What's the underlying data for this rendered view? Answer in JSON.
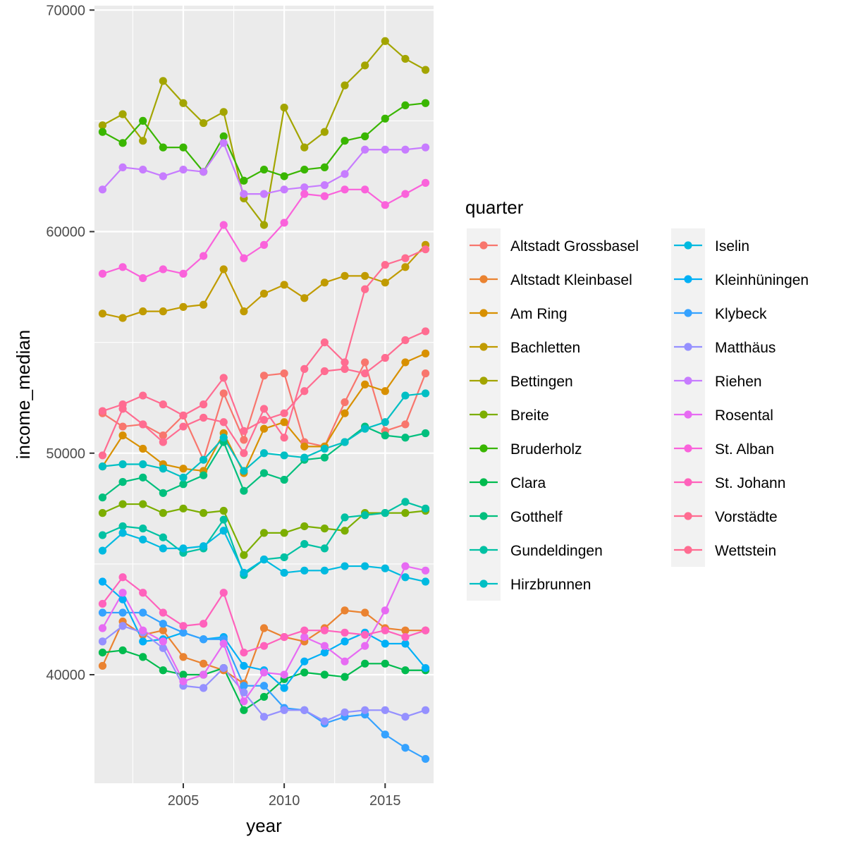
{
  "chart_data": {
    "type": "line",
    "xlabel": "year",
    "ylabel": "income_median",
    "xlim": [
      2000.6,
      2017.4
    ],
    "ylim": [
      35100,
      70200
    ],
    "x_ticks": [
      2005,
      2010,
      2015
    ],
    "x_tick_labels": [
      "2005",
      "2010",
      "2015"
    ],
    "y_ticks": [
      40000,
      50000,
      60000,
      70000
    ],
    "y_tick_labels": [
      "40000",
      "50000",
      "60000",
      "70000"
    ],
    "grid": true,
    "legend_title": "quarter",
    "legend_position": "right",
    "x": [
      2001,
      2002,
      2003,
      2004,
      2005,
      2006,
      2007,
      2008,
      2009,
      2010,
      2011,
      2012,
      2013,
      2014,
      2015,
      2016,
      2017
    ],
    "series": [
      {
        "name": "Altstadt Grossbasel",
        "color": "#F8766D",
        "values": [
          51800,
          51200,
          51300,
          50800,
          51700,
          49700,
          52700,
          50600,
          53500,
          53600,
          50500,
          50300,
          52300,
          54100,
          51000,
          51300,
          53600
        ]
      },
      {
        "name": "Altstadt Kleinbasel",
        "color": "#EA8331",
        "values": [
          40400,
          42400,
          41800,
          42000,
          40800,
          40500,
          40200,
          39600,
          42100,
          41700,
          41500,
          42100,
          42900,
          42800,
          42100,
          42000,
          42000
        ]
      },
      {
        "name": "Am Ring",
        "color": "#D89000",
        "values": [
          49400,
          50800,
          50200,
          49500,
          49300,
          49200,
          50900,
          49100,
          51100,
          51400,
          50300,
          50300,
          51800,
          53100,
          52800,
          54100,
          54500
        ]
      },
      {
        "name": "Bachletten",
        "color": "#C09B00",
        "values": [
          56300,
          56100,
          56400,
          56400,
          56600,
          56700,
          58300,
          56400,
          57200,
          57600,
          57000,
          57700,
          58000,
          58000,
          57700,
          58400,
          59400
        ]
      },
      {
        "name": "Bettingen",
        "color": "#A3A500",
        "values": [
          64800,
          65300,
          64100,
          66800,
          65800,
          64900,
          65400,
          61500,
          60300,
          65600,
          63800,
          64500,
          66600,
          67500,
          68600,
          67800,
          67300
        ]
      },
      {
        "name": "Breite",
        "color": "#7CAE00",
        "values": [
          47300,
          47700,
          47700,
          47300,
          47500,
          47300,
          47400,
          45400,
          46400,
          46400,
          46700,
          46600,
          46500,
          47300,
          47300,
          47300,
          47400
        ]
      },
      {
        "name": "Bruderholz",
        "color": "#39B600",
        "values": [
          64500,
          64000,
          65000,
          63800,
          63800,
          62700,
          64300,
          62300,
          62800,
          62500,
          62800,
          62900,
          64100,
          64300,
          65100,
          65700,
          65800
        ]
      },
      {
        "name": "Clara",
        "color": "#00BB4E",
        "values": [
          41000,
          41100,
          40800,
          40200,
          40000,
          40000,
          40300,
          38400,
          39000,
          39800,
          40100,
          40000,
          39900,
          40500,
          40500,
          40200,
          40200
        ]
      },
      {
        "name": "Gotthelf",
        "color": "#00BF7D",
        "values": [
          48000,
          48700,
          48900,
          48200,
          48600,
          49000,
          50500,
          48300,
          49100,
          48800,
          49700,
          49800,
          50500,
          51200,
          50800,
          50700,
          50900
        ]
      },
      {
        "name": "Gundeldingen",
        "color": "#00C1A3",
        "values": [
          46300,
          46700,
          46600,
          46200,
          45500,
          45700,
          47000,
          44500,
          45200,
          45300,
          45900,
          45700,
          47100,
          47200,
          47300,
          47800,
          47500
        ]
      },
      {
        "name": "Hirzbrunnen",
        "color": "#00BFC4",
        "values": [
          49400,
          49500,
          49500,
          49300,
          48900,
          49700,
          50700,
          49200,
          50000,
          49900,
          49800,
          50200,
          50500,
          51100,
          51400,
          52600,
          52700
        ]
      },
      {
        "name": "Iselin",
        "color": "#00BAE0",
        "values": [
          45600,
          46400,
          46100,
          45700,
          45700,
          45800,
          46500,
          44600,
          45200,
          44600,
          44700,
          44700,
          44900,
          44900,
          44800,
          44400,
          44200
        ]
      },
      {
        "name": "Kleinhüningen",
        "color": "#00B0F6",
        "values": [
          44200,
          43400,
          41500,
          41600,
          41900,
          41600,
          41700,
          40400,
          40200,
          39400,
          40600,
          41000,
          41500,
          41900,
          41400,
          41400,
          40300
        ]
      },
      {
        "name": "Klybeck",
        "color": "#35A2FF",
        "values": [
          42800,
          42800,
          42800,
          42300,
          41900,
          41600,
          41600,
          39500,
          39500,
          38500,
          38400,
          37800,
          38100,
          38200,
          37300,
          36700,
          36200
        ]
      },
      {
        "name": "Matthäus",
        "color": "#9590FF",
        "values": [
          41500,
          42200,
          41900,
          41200,
          39500,
          39400,
          40300,
          39200,
          38100,
          38400,
          38400,
          37900,
          38300,
          38400,
          38400,
          38100,
          38400
        ]
      },
      {
        "name": "Riehen",
        "color": "#C77CFF",
        "values": [
          61900,
          62900,
          62800,
          62500,
          62800,
          62700,
          64000,
          61700,
          61700,
          61900,
          62000,
          62100,
          62600,
          63700,
          63700,
          63700,
          63800
        ]
      },
      {
        "name": "Rosental",
        "color": "#E76BF3",
        "values": [
          42100,
          43700,
          42000,
          41500,
          39700,
          40000,
          41400,
          38800,
          40100,
          40000,
          41700,
          41300,
          40600,
          41300,
          42900,
          44900,
          44700
        ]
      },
      {
        "name": "St. Alban",
        "color": "#FA62DB",
        "values": [
          58100,
          58400,
          57900,
          58300,
          58100,
          58900,
          60300,
          58800,
          59400,
          60400,
          61700,
          61600,
          61900,
          61900,
          61200,
          61700,
          62200
        ]
      },
      {
        "name": "St. Johann",
        "color": "#FF62BC",
        "values": [
          43200,
          44400,
          43700,
          42800,
          42200,
          42300,
          43700,
          41000,
          41300,
          41700,
          42000,
          42000,
          41900,
          41800,
          42000,
          41700,
          42000
        ]
      },
      {
        "name": "Vorstädte",
        "color": "#FF6C91",
        "values": [
          49900,
          52000,
          51300,
          50500,
          51200,
          51600,
          51400,
          50000,
          52000,
          50700,
          53800,
          55000,
          54100,
          57400,
          58500,
          58800,
          59200
        ]
      },
      {
        "name": "Wettstein",
        "color": "#FF6C91",
        "values": [
          51900,
          52200,
          52600,
          52200,
          51700,
          52200,
          53400,
          51000,
          51500,
          51800,
          52800,
          53700,
          53800,
          53600,
          54300,
          55100,
          55500
        ]
      }
    ]
  }
}
